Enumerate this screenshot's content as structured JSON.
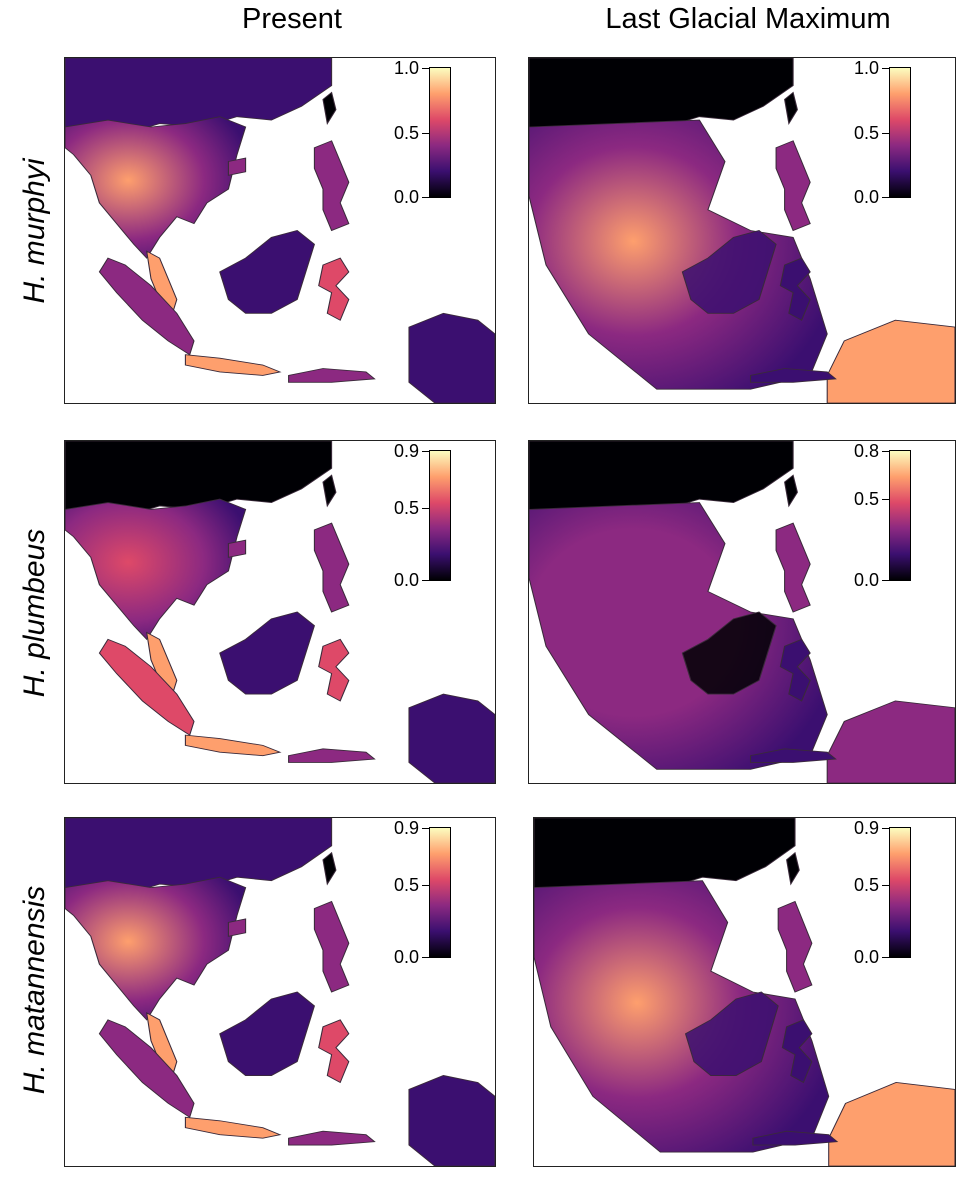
{
  "columns": [
    "Present",
    "Last Glacial Maximum"
  ],
  "rows": [
    {
      "species": "H. murphyi",
      "present": {
        "ticks": [
          "1.0",
          "0.5",
          "0.0"
        ],
        "max": 1.0,
        "variant": "murphyi-present"
      },
      "lgm": {
        "ticks": [
          "1.0",
          "0.5",
          "0.0"
        ],
        "max": 1.0,
        "variant": "murphyi-lgm"
      }
    },
    {
      "species": "H. plumbeus",
      "present": {
        "ticks": [
          "0.9",
          "0.5",
          "0.0"
        ],
        "max": 0.9,
        "variant": "plumbeus-present"
      },
      "lgm": {
        "ticks": [
          "0.8",
          "0.5",
          "0.0"
        ],
        "max": 0.8,
        "variant": "plumbeus-lgm"
      }
    },
    {
      "species": "H. matannensis",
      "present": {
        "ticks": [
          "0.9",
          "0.5",
          "0.0"
        ],
        "max": 0.9,
        "variant": "matannensis-present"
      },
      "lgm": {
        "ticks": [
          "0.9",
          "0.5",
          "0.0"
        ],
        "max": 0.9,
        "variant": "matannensis-lgm"
      }
    }
  ],
  "colormap": {
    "name": "magma",
    "stops": [
      "#000004",
      "#3b0f70",
      "#8c2981",
      "#de4968",
      "#fe9f6d",
      "#fcfdbf"
    ]
  }
}
